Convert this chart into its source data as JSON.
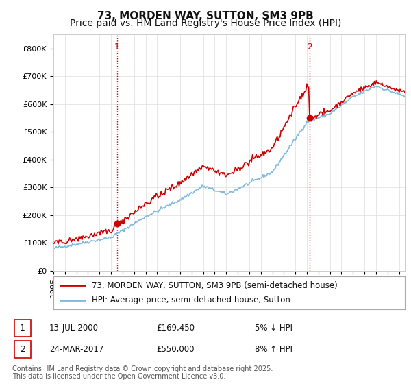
{
  "title": "73, MORDEN WAY, SUTTON, SM3 9PB",
  "subtitle": "Price paid vs. HM Land Registry's House Price Index (HPI)",
  "ylim": [
    0,
    850000
  ],
  "yticks": [
    0,
    100000,
    200000,
    300000,
    400000,
    500000,
    600000,
    700000,
    800000
  ],
  "ytick_labels": [
    "£0",
    "£100K",
    "£200K",
    "£300K",
    "£400K",
    "£500K",
    "£600K",
    "£700K",
    "£800K"
  ],
  "line1_color": "#cc0000",
  "line2_color": "#7eb9e0",
  "vline_color": "#cc0000",
  "purchase1_date": 2000.53,
  "purchase1_price": 169450,
  "purchase2_date": 2017.23,
  "purchase2_price": 550000,
  "marker_color": "#cc0000",
  "marker_size": 6,
  "legend1_label": "73, MORDEN WAY, SUTTON, SM3 9PB (semi-detached house)",
  "legend2_label": "HPI: Average price, semi-detached house, Sutton",
  "annotation1_date": "13-JUL-2000",
  "annotation1_price": "£169,450",
  "annotation1_hpi": "5% ↓ HPI",
  "annotation2_date": "24-MAR-2017",
  "annotation2_price": "£550,000",
  "annotation2_hpi": "8% ↑ HPI",
  "footer": "Contains HM Land Registry data © Crown copyright and database right 2025.\nThis data is licensed under the Open Government Licence v3.0.",
  "background_color": "#ffffff",
  "grid_color": "#dddddd",
  "title_fontsize": 11,
  "subtitle_fontsize": 10,
  "tick_fontsize": 8,
  "legend_fontsize": 8.5,
  "annotation_fontsize": 8.5,
  "footer_fontsize": 7
}
